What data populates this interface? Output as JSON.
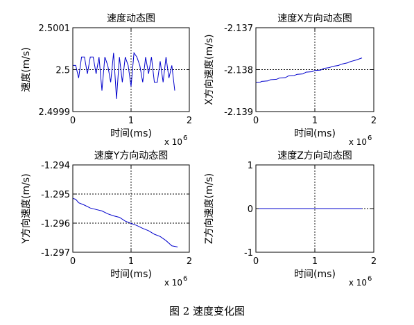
{
  "figure_caption": "图 2  速度变化图",
  "colors": {
    "series": "#0000cc",
    "axes": "#000000",
    "grid": "#000000"
  },
  "chart_data": [
    {
      "type": "line",
      "title": "速度动态图",
      "xlabel": "时间(ms)",
      "ylabel": "速度(m/s)",
      "x_multiplier": "x 10",
      "x_multiplier_exp": "6",
      "xlim": [
        0,
        2
      ],
      "ylim": [
        2.4999,
        2.5001
      ],
      "xticks": [
        0,
        1,
        2
      ],
      "xtick_labels": [
        "0",
        "1",
        "2"
      ],
      "yticks": [
        2.4999,
        2.5,
        2.5001
      ],
      "ytick_labels": [
        "2.4999",
        "2.5",
        "2.5001"
      ],
      "grid": "dotted",
      "series": [
        {
          "x": [
            0,
            0.05,
            0.1,
            0.15,
            0.2,
            0.25,
            0.3,
            0.35,
            0.4,
            0.45,
            0.5,
            0.55,
            0.6,
            0.65,
            0.7,
            0.75,
            0.8,
            0.85,
            0.9,
            0.95,
            1.0,
            1.05,
            1.1,
            1.15,
            1.2,
            1.25,
            1.3,
            1.35,
            1.4,
            1.45,
            1.5,
            1.55,
            1.6,
            1.65,
            1.7,
            1.75
          ],
          "y": [
            2.50001,
            2.50001,
            2.49998,
            2.50003,
            2.50003,
            2.49999,
            2.50003,
            2.50003,
            2.49999,
            2.50003,
            2.49995,
            2.50003,
            2.50001,
            2.49997,
            2.50004,
            2.49993,
            2.50003,
            2.49997,
            2.50003,
            2.50001,
            2.49996,
            2.50004,
            2.50003,
            2.50001,
            2.49997,
            2.50003,
            2.49999,
            2.50003,
            2.49997,
            2.49997,
            2.50002,
            2.49997,
            2.50003,
            2.49998,
            2.50001,
            2.49995
          ]
        }
      ]
    },
    {
      "type": "line",
      "title": "速度X方向动态图",
      "xlabel": "时间(ms)",
      "ylabel": "X方向速度(m/s)",
      "x_multiplier": "x 10",
      "x_multiplier_exp": "6",
      "xlim": [
        0,
        2
      ],
      "ylim": [
        -2.139,
        -2.137
      ],
      "xticks": [
        0,
        1,
        2
      ],
      "xtick_labels": [
        "0",
        "1",
        "2"
      ],
      "yticks": [
        -2.139,
        -2.138,
        -2.137
      ],
      "ytick_labels": [
        "-2.139",
        "-2.138",
        "-2.137"
      ],
      "grid": "dotted",
      "series": [
        {
          "x": [
            0,
            0.07,
            0.1,
            0.2,
            0.25,
            0.35,
            0.4,
            0.5,
            0.55,
            0.65,
            0.7,
            0.8,
            0.85,
            0.95,
            1.0,
            1.1,
            1.15,
            1.25,
            1.3,
            1.4,
            1.45,
            1.55,
            1.6,
            1.7,
            1.8
          ],
          "y": [
            -2.13831,
            -2.1383,
            -2.13828,
            -2.13827,
            -2.13824,
            -2.13823,
            -2.1382,
            -2.13819,
            -2.13815,
            -2.13814,
            -2.13811,
            -2.1381,
            -2.13806,
            -2.13805,
            -2.13802,
            -2.13801,
            -2.13797,
            -2.13795,
            -2.13792,
            -2.1379,
            -2.13787,
            -2.13784,
            -2.13781,
            -2.13777,
            -2.13772
          ]
        }
      ]
    },
    {
      "type": "line",
      "title": "速度Y方向动态图",
      "xlabel": "时间(ms)",
      "ylabel": "Y方向速度(m/s)",
      "x_multiplier": "x 10",
      "x_multiplier_exp": "6",
      "xlim": [
        0,
        2
      ],
      "ylim": [
        -1.297,
        -1.294
      ],
      "xticks": [
        0,
        1,
        2
      ],
      "xtick_labels": [
        "0",
        "1",
        "2"
      ],
      "yticks": [
        -1.297,
        -1.296,
        -1.295,
        -1.294
      ],
      "ytick_labels": [
        "-1.297",
        "-1.296",
        "-1.295",
        "-1.294"
      ],
      "grid": "dotted",
      "series": [
        {
          "x": [
            0,
            0.05,
            0.1,
            0.2,
            0.3,
            0.4,
            0.5,
            0.6,
            0.7,
            0.8,
            0.9,
            1.0,
            1.1,
            1.2,
            1.3,
            1.4,
            1.5,
            1.6,
            1.7,
            1.8
          ],
          "y": [
            -1.29515,
            -1.29518,
            -1.2953,
            -1.29538,
            -1.29548,
            -1.29553,
            -1.29558,
            -1.29568,
            -1.29575,
            -1.2958,
            -1.29593,
            -1.29601,
            -1.29608,
            -1.29618,
            -1.29626,
            -1.29638,
            -1.29646,
            -1.2966,
            -1.29678,
            -1.29682
          ]
        }
      ]
    },
    {
      "type": "line",
      "title": "速度Z方向动态图",
      "xlabel": "时间(ms)",
      "ylabel": "Z方向速度(m/s)",
      "x_multiplier": "x 10",
      "x_multiplier_exp": "6",
      "xlim": [
        0,
        2
      ],
      "ylim": [
        -1,
        1
      ],
      "xticks": [
        0,
        1,
        2
      ],
      "xtick_labels": [
        "0",
        "1",
        "2"
      ],
      "yticks": [
        -1,
        0,
        1
      ],
      "ytick_labels": [
        "-1",
        "0",
        "1"
      ],
      "grid": "dotted",
      "series": [
        {
          "x": [
            0,
            1.8
          ],
          "y": [
            0,
            0
          ]
        }
      ]
    }
  ]
}
